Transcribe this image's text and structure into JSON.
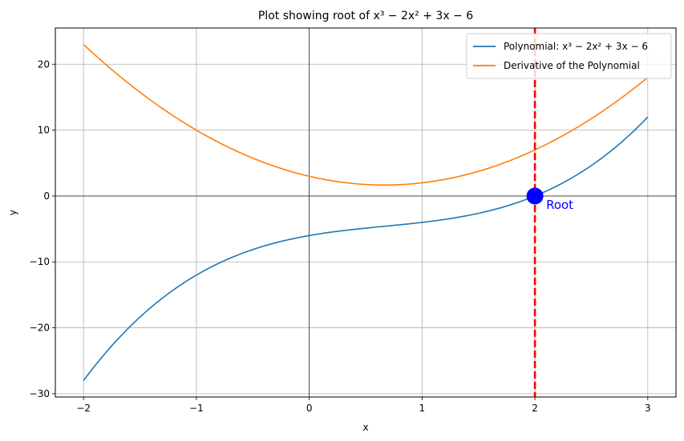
{
  "chart_data": {
    "type": "line",
    "title": "Plot showing root of x³ − 2x² + 3x − 6",
    "xlabel": "x",
    "ylabel": "y",
    "xlim": [
      -2.25,
      3.25
    ],
    "ylim": [
      -30.5,
      25.5
    ],
    "xticks": [
      -2,
      -1,
      0,
      1,
      2,
      3
    ],
    "xtick_labels": [
      "−2",
      "−1",
      "0",
      "1",
      "2",
      "3"
    ],
    "yticks": [
      -30,
      -20,
      -10,
      0,
      10,
      20
    ],
    "ytick_labels": [
      "−30",
      "−20",
      "−10",
      "0",
      "10",
      "20"
    ],
    "grid": true,
    "legend_position": "top-right",
    "x_range": [
      -2,
      3
    ],
    "sample_count": 200,
    "series": [
      {
        "name": "Polynomial: x³ − 2x² + 3x − 6",
        "expression": "x^3 - 2x^2 + 3x - 6",
        "coefficients": [
          1,
          -2,
          3,
          -6
        ],
        "color": "#1f77b4"
      },
      {
        "name": "Derivative of the Polynomial",
        "expression": "3x^2 - 4x + 3",
        "coefficients": [
          3,
          -4,
          3
        ],
        "color": "#ff7f0e"
      }
    ],
    "root": {
      "x": 2,
      "y": 0,
      "label": "Root",
      "marker_color": "#0000ff",
      "line_color": "#ff0000"
    },
    "axis_lines": {
      "x": 0,
      "y": 0
    }
  }
}
